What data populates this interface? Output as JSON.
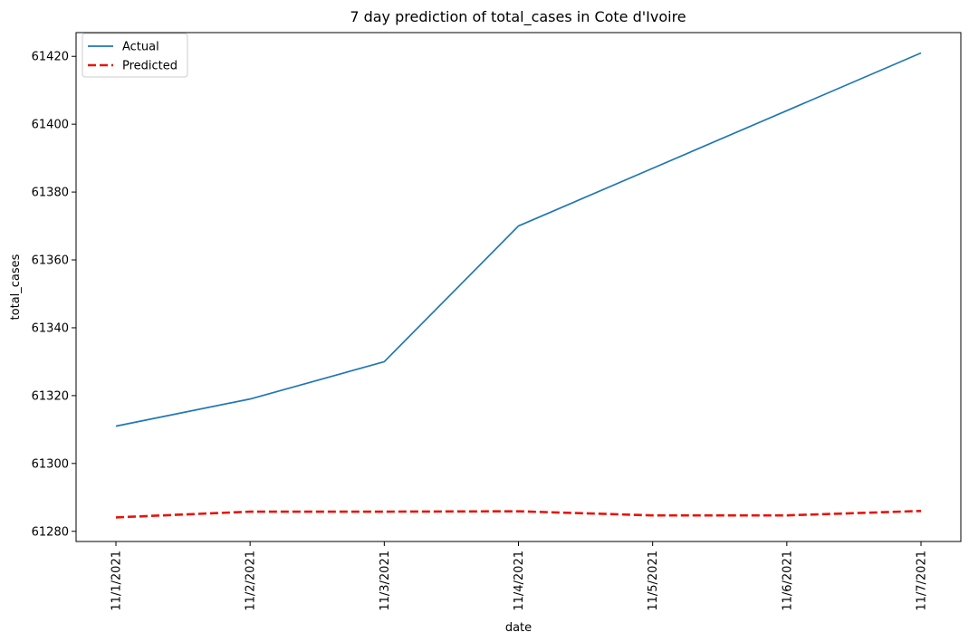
{
  "chart_data": {
    "type": "line",
    "title": "7 day prediction of total_cases in Cote d'Ivoire",
    "xlabel": "date",
    "ylabel": "total_cases",
    "categories": [
      "11/1/2021",
      "11/2/2021",
      "11/3/2021",
      "11/4/2021",
      "11/5/2021",
      "11/6/2021",
      "11/7/2021"
    ],
    "ylim": [
      61277,
      61427
    ],
    "yticks": [
      61280,
      61300,
      61320,
      61340,
      61360,
      61380,
      61400,
      61420
    ],
    "grid": false,
    "legend": "upper left",
    "series": [
      {
        "name": "Actual",
        "color": "#1f77b4",
        "style": "solid",
        "values": [
          61311,
          61319,
          61330,
          61370,
          61387,
          61404,
          61421
        ]
      },
      {
        "name": "Predicted",
        "color": "#e8140c",
        "style": "dashed",
        "values": [
          61284.1,
          61285.8,
          61285.8,
          61285.9,
          61284.7,
          61284.7,
          61286.0
        ]
      }
    ]
  }
}
